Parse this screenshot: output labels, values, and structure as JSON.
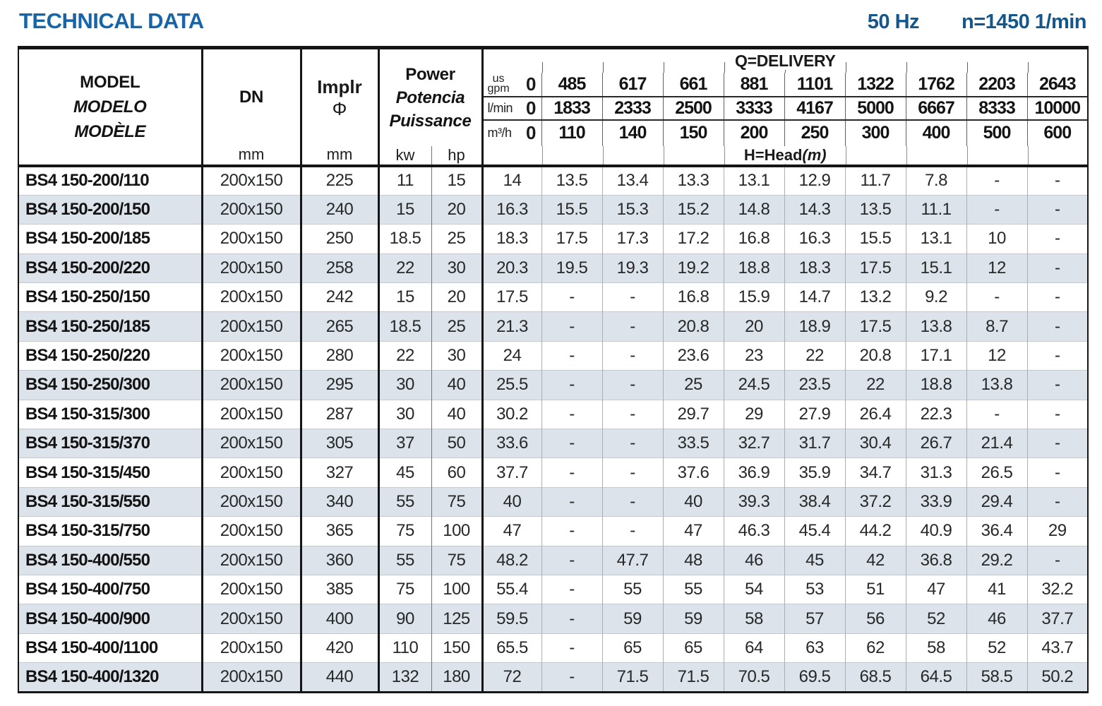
{
  "colors": {
    "accent": "#1565a8",
    "row_alt": "#dce3ea"
  },
  "header": {
    "title": "TECHNICAL DATA",
    "frequency": "50 Hz",
    "speed": "n=1450 1/min"
  },
  "table": {
    "model_header": {
      "en": "MODEL",
      "es": "MODELO",
      "fr": "MODÈLE"
    },
    "dn": {
      "label": "DN",
      "unit": "mm"
    },
    "impeller": {
      "label": "Implr",
      "symbol": "Φ",
      "unit": "mm"
    },
    "power": {
      "en": "Power",
      "es": "Potencia",
      "fr": "Puissance",
      "kw": "kw",
      "hp": "hp"
    },
    "delivery": {
      "label": "Q=DELIVERY",
      "gpm": {
        "unit_top": "us",
        "unit": "gpm",
        "zero": "0",
        "values": [
          "485",
          "617",
          "661",
          "881",
          "1101",
          "1322",
          "1762",
          "2203",
          "2643"
        ]
      },
      "lmin": {
        "unit": "l/min",
        "zero": "0",
        "values": [
          "1833",
          "2333",
          "2500",
          "3333",
          "4167",
          "5000",
          "6667",
          "8333",
          "10000"
        ]
      },
      "m3h": {
        "unit": "m³/h",
        "zero": "0",
        "values": [
          "110",
          "140",
          "150",
          "200",
          "250",
          "300",
          "400",
          "500",
          "600"
        ]
      },
      "head_label": "H=Head",
      "head_unit": "(m)"
    },
    "rows": [
      {
        "model": "BS4 150-200/110",
        "dn": "200x150",
        "impeller": "225",
        "kw": "11",
        "hp": "15",
        "head": [
          "14",
          "13.5",
          "13.4",
          "13.3",
          "13.1",
          "12.9",
          "11.7",
          "7.8",
          "-",
          "-"
        ]
      },
      {
        "model": "BS4 150-200/150",
        "dn": "200x150",
        "impeller": "240",
        "kw": "15",
        "hp": "20",
        "head": [
          "16.3",
          "15.5",
          "15.3",
          "15.2",
          "14.8",
          "14.3",
          "13.5",
          "11.1",
          "-",
          "-"
        ]
      },
      {
        "model": "BS4 150-200/185",
        "dn": "200x150",
        "impeller": "250",
        "kw": "18.5",
        "hp": "25",
        "head": [
          "18.3",
          "17.5",
          "17.3",
          "17.2",
          "16.8",
          "16.3",
          "15.5",
          "13.1",
          "10",
          "-"
        ]
      },
      {
        "model": "BS4 150-200/220",
        "dn": "200x150",
        "impeller": "258",
        "kw": "22",
        "hp": "30",
        "head": [
          "20.3",
          "19.5",
          "19.3",
          "19.2",
          "18.8",
          "18.3",
          "17.5",
          "15.1",
          "12",
          "-"
        ]
      },
      {
        "model": "BS4 150-250/150",
        "dn": "200x150",
        "impeller": "242",
        "kw": "15",
        "hp": "20",
        "head": [
          "17.5",
          "-",
          "-",
          "16.8",
          "15.9",
          "14.7",
          "13.2",
          "9.2",
          "-",
          "-"
        ]
      },
      {
        "model": "BS4 150-250/185",
        "dn": "200x150",
        "impeller": "265",
        "kw": "18.5",
        "hp": "25",
        "head": [
          "21.3",
          "-",
          "-",
          "20.8",
          "20",
          "18.9",
          "17.5",
          "13.8",
          "8.7",
          "-"
        ]
      },
      {
        "model": "BS4 150-250/220",
        "dn": "200x150",
        "impeller": "280",
        "kw": "22",
        "hp": "30",
        "head": [
          "24",
          "-",
          "-",
          "23.6",
          "23",
          "22",
          "20.8",
          "17.1",
          "12",
          "-"
        ]
      },
      {
        "model": "BS4 150-250/300",
        "dn": "200x150",
        "impeller": "295",
        "kw": "30",
        "hp": "40",
        "head": [
          "25.5",
          "-",
          "-",
          "25",
          "24.5",
          "23.5",
          "22",
          "18.8",
          "13.8",
          "-"
        ]
      },
      {
        "model": "BS4 150-315/300",
        "dn": "200x150",
        "impeller": "287",
        "kw": "30",
        "hp": "40",
        "head": [
          "30.2",
          "-",
          "-",
          "29.7",
          "29",
          "27.9",
          "26.4",
          "22.3",
          "-",
          "-"
        ]
      },
      {
        "model": "BS4 150-315/370",
        "dn": "200x150",
        "impeller": "305",
        "kw": "37",
        "hp": "50",
        "head": [
          "33.6",
          "-",
          "-",
          "33.5",
          "32.7",
          "31.7",
          "30.4",
          "26.7",
          "21.4",
          "-"
        ]
      },
      {
        "model": "BS4 150-315/450",
        "dn": "200x150",
        "impeller": "327",
        "kw": "45",
        "hp": "60",
        "head": [
          "37.7",
          "-",
          "-",
          "37.6",
          "36.9",
          "35.9",
          "34.7",
          "31.3",
          "26.5",
          "-"
        ]
      },
      {
        "model": "BS4 150-315/550",
        "dn": "200x150",
        "impeller": "340",
        "kw": "55",
        "hp": "75",
        "head": [
          "40",
          "-",
          "-",
          "40",
          "39.3",
          "38.4",
          "37.2",
          "33.9",
          "29.4",
          "-"
        ]
      },
      {
        "model": "BS4 150-315/750",
        "dn": "200x150",
        "impeller": "365",
        "kw": "75",
        "hp": "100",
        "head": [
          "47",
          "-",
          "-",
          "47",
          "46.3",
          "45.4",
          "44.2",
          "40.9",
          "36.4",
          "29"
        ]
      },
      {
        "model": "BS4 150-400/550",
        "dn": "200x150",
        "impeller": "360",
        "kw": "55",
        "hp": "75",
        "head": [
          "48.2",
          "-",
          "47.7",
          "48",
          "46",
          "45",
          "42",
          "36.8",
          "29.2",
          "-"
        ]
      },
      {
        "model": "BS4 150-400/750",
        "dn": "200x150",
        "impeller": "385",
        "kw": "75",
        "hp": "100",
        "head": [
          "55.4",
          "-",
          "55",
          "55",
          "54",
          "53",
          "51",
          "47",
          "41",
          "32.2"
        ]
      },
      {
        "model": "BS4 150-400/900",
        "dn": "200x150",
        "impeller": "400",
        "kw": "90",
        "hp": "125",
        "head": [
          "59.5",
          "-",
          "59",
          "59",
          "58",
          "57",
          "56",
          "52",
          "46",
          "37.7"
        ]
      },
      {
        "model": "BS4 150-400/1100",
        "dn": "200x150",
        "impeller": "420",
        "kw": "110",
        "hp": "150",
        "head": [
          "65.5",
          "-",
          "65",
          "65",
          "64",
          "63",
          "62",
          "58",
          "52",
          "43.7"
        ]
      },
      {
        "model": "BS4 150-400/1320",
        "dn": "200x150",
        "impeller": "440",
        "kw": "132",
        "hp": "180",
        "head": [
          "72",
          "-",
          "71.5",
          "71.5",
          "70.5",
          "69.5",
          "68.5",
          "64.5",
          "58.5",
          "50.2"
        ]
      }
    ]
  }
}
